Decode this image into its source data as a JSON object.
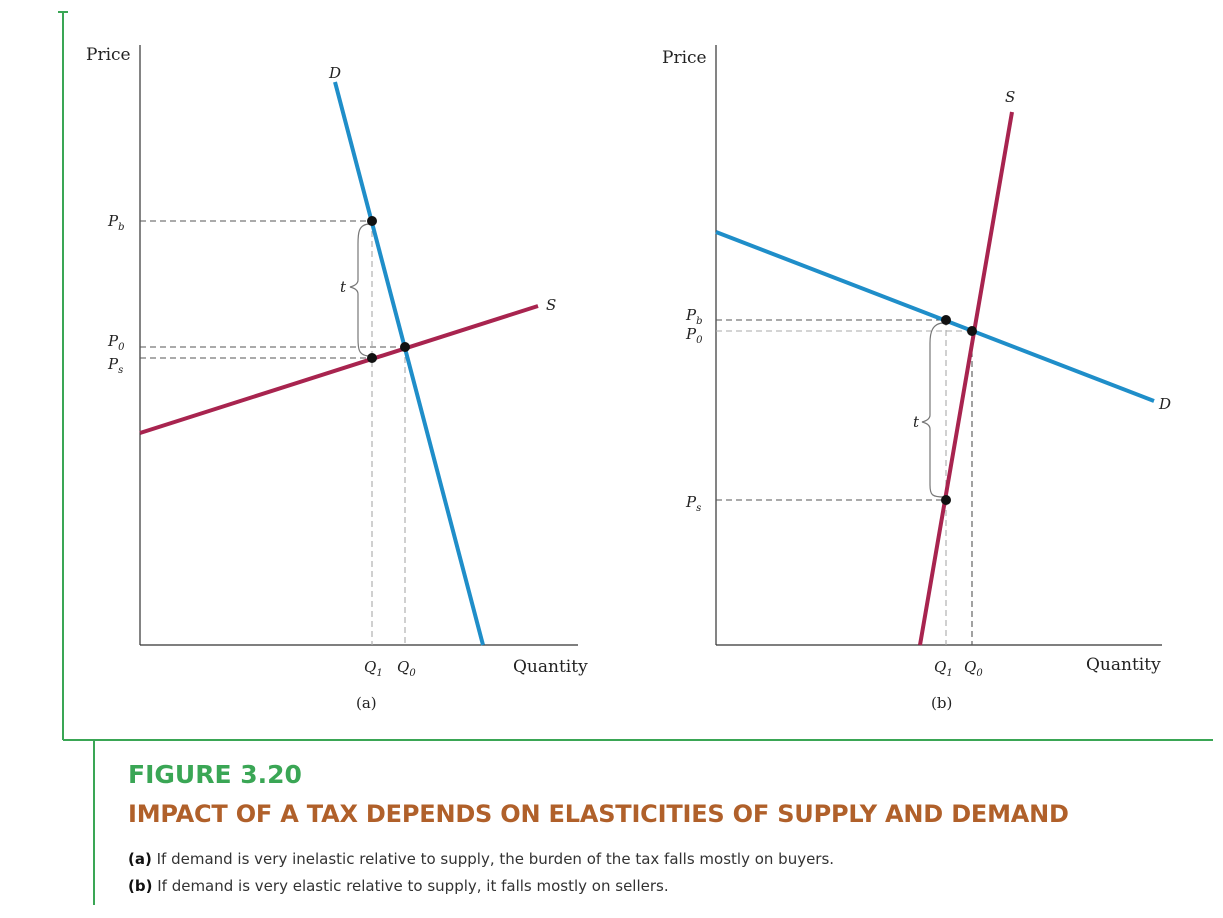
{
  "figure": {
    "number": "FIGURE 3.20",
    "title": "IMPACT OF A TAX DEPENDS ON ELASTICITIES OF SUPPLY AND DEMAND",
    "caption_a_label": "(a)",
    "caption_a_text": " If demand is very inelastic relative to supply, the burden of the tax falls mostly on buyers.",
    "caption_b_label": "(b)",
    "caption_b_text": " If demand is very elastic relative to supply, it falls mostly on sellers."
  },
  "colors": {
    "demand": "#1f8ec9",
    "supply": "#a8244f",
    "frame": "#3aa655",
    "title": "#b0602a"
  },
  "panels": [
    {
      "label": "(a)",
      "y_axis_title": "Price",
      "x_axis_title": "Quantity",
      "demand_label": "D",
      "supply_label": "S",
      "tax_label": "t",
      "price_labels": {
        "pb": "P",
        "pb_sub": "b",
        "p0": "P",
        "p0_sub": "0",
        "ps": "P",
        "ps_sub": "s"
      },
      "quantity_labels": {
        "q1": "Q",
        "q1_sub": "1",
        "q0": "Q",
        "q0_sub": "0"
      }
    },
    {
      "label": "(b)",
      "y_axis_title": "Price",
      "x_axis_title": "Quantity",
      "demand_label": "D",
      "supply_label": "S",
      "tax_label": "t",
      "price_labels": {
        "pb": "P",
        "pb_sub": "b",
        "p0": "P",
        "p0_sub": "0",
        "ps": "P",
        "ps_sub": "s"
      },
      "quantity_labels": {
        "q1": "Q",
        "q1_sub": "1",
        "q0": "Q",
        "q0_sub": "0"
      }
    }
  ]
}
